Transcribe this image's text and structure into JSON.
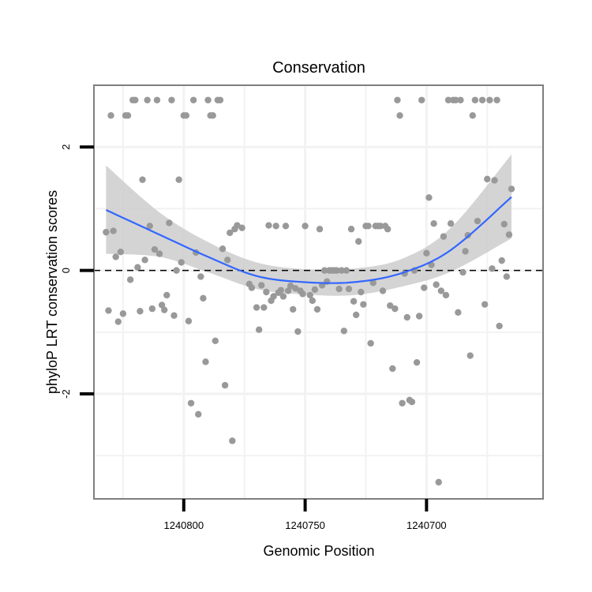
{
  "chart_data": {
    "type": "scatter",
    "title": "Conservation",
    "xlabel": "Genomic Position",
    "ylabel": "phyloP LRT conservation scores",
    "x_reversed": true,
    "xlim": [
      1240837,
      1240652
    ],
    "ylim": [
      -3.7,
      3.0
    ],
    "x_ticks": [
      1240800,
      1240750,
      1240700
    ],
    "x_tick_labels": [
      "1240800",
      "1240750",
      "1240700"
    ],
    "y_ticks": [
      -2,
      0,
      2
    ],
    "y_tick_labels": [
      "-2",
      "0",
      "2"
    ],
    "reference_line": {
      "y": 0,
      "style": "dashed"
    },
    "colors": {
      "points": "#999999",
      "smooth_line": "#3366ff",
      "confidence_band": "#cccccc",
      "panel_border": "#7f7f7f",
      "grid": "#f2f2f2"
    },
    "series": [
      {
        "name": "scores",
        "points": [
          [
            1240832,
            0.62
          ],
          [
            1240831,
            -0.65
          ],
          [
            1240830,
            2.51
          ],
          [
            1240829,
            0.64
          ],
          [
            1240828,
            0.22
          ],
          [
            1240827,
            -0.83
          ],
          [
            1240826,
            0.3
          ],
          [
            1240825,
            -0.7
          ],
          [
            1240824,
            2.51
          ],
          [
            1240823,
            2.51
          ],
          [
            1240822,
            -0.15
          ],
          [
            1240821,
            2.76
          ],
          [
            1240820,
            2.76
          ],
          [
            1240819,
            0.05
          ],
          [
            1240818,
            -0.66
          ],
          [
            1240817,
            1.47
          ],
          [
            1240816,
            0.17
          ],
          [
            1240815,
            2.76
          ],
          [
            1240814,
            0.72
          ],
          [
            1240813,
            -0.62
          ],
          [
            1240812,
            0.34
          ],
          [
            1240811,
            2.76
          ],
          [
            1240810,
            0.27
          ],
          [
            1240809,
            -0.56
          ],
          [
            1240808,
            -0.64
          ],
          [
            1240807,
            -0.4
          ],
          [
            1240806,
            0.77
          ],
          [
            1240805,
            2.76
          ],
          [
            1240804,
            -0.73
          ],
          [
            1240803,
            0
          ],
          [
            1240802,
            1.47
          ],
          [
            1240801,
            0.13
          ],
          [
            1240800,
            2.51
          ],
          [
            1240799,
            2.51
          ],
          [
            1240798,
            -0.82
          ],
          [
            1240797,
            -2.15
          ],
          [
            1240796,
            2.76
          ],
          [
            1240795,
            0.29
          ],
          [
            1240794,
            -2.33
          ],
          [
            1240793,
            -0.1
          ],
          [
            1240792,
            -0.45
          ],
          [
            1240791,
            -1.48
          ],
          [
            1240790,
            2.76
          ],
          [
            1240789,
            2.51
          ],
          [
            1240788,
            2.51
          ],
          [
            1240787,
            -1.14
          ],
          [
            1240786,
            2.76
          ],
          [
            1240785,
            2.76
          ],
          [
            1240784,
            0.35
          ],
          [
            1240783,
            -1.86
          ],
          [
            1240782,
            0.17
          ],
          [
            1240781,
            0.61
          ],
          [
            1240780,
            -2.76
          ],
          [
            1240779,
            0.67
          ],
          [
            1240778,
            0.73
          ],
          [
            1240776,
            0.69
          ],
          [
            1240773,
            -0.22
          ],
          [
            1240772,
            -0.28
          ],
          [
            1240770,
            -0.6
          ],
          [
            1240769,
            -0.96
          ],
          [
            1240768,
            -0.24
          ],
          [
            1240767,
            -0.6
          ],
          [
            1240766,
            -0.35
          ],
          [
            1240765,
            0.73
          ],
          [
            1240764,
            -0.49
          ],
          [
            1240763,
            -0.42
          ],
          [
            1240762,
            0.72
          ],
          [
            1240761,
            -0.36
          ],
          [
            1240760,
            -0.32
          ],
          [
            1240759,
            -0.42
          ],
          [
            1240758,
            0.72
          ],
          [
            1240757,
            -0.33
          ],
          [
            1240756,
            -0.25
          ],
          [
            1240755,
            -0.63
          ],
          [
            1240754,
            -0.29
          ],
          [
            1240753,
            -0.99
          ],
          [
            1240752,
            -0.33
          ],
          [
            1240751,
            -0.38
          ],
          [
            1240750,
            0.72
          ],
          [
            1240748,
            -0.4
          ],
          [
            1240747,
            -0.49
          ],
          [
            1240746,
            -0.31
          ],
          [
            1240745,
            -0.63
          ],
          [
            1240744,
            0.67
          ],
          [
            1240743,
            -0.24
          ],
          [
            1240742,
            0
          ],
          [
            1240741,
            -0.18
          ],
          [
            1240740,
            0
          ],
          [
            1240739,
            0
          ],
          [
            1240738,
            0
          ],
          [
            1240737,
            0
          ],
          [
            1240736,
            -0.3
          ],
          [
            1240735,
            0
          ],
          [
            1240734,
            -0.98
          ],
          [
            1240733,
            0
          ],
          [
            1240732,
            -0.3
          ],
          [
            1240731,
            0.67
          ],
          [
            1240730,
            -0.5
          ],
          [
            1240729,
            -0.72
          ],
          [
            1240728,
            0.47
          ],
          [
            1240727,
            -0.35
          ],
          [
            1240726,
            -0.55
          ],
          [
            1240725,
            0.72
          ],
          [
            1240724,
            0.72
          ],
          [
            1240723,
            -1.18
          ],
          [
            1240722,
            -0.2
          ],
          [
            1240721,
            0.72
          ],
          [
            1240720,
            0.72
          ],
          [
            1240719,
            0.72
          ],
          [
            1240718,
            -0.33
          ],
          [
            1240717,
            0.72
          ],
          [
            1240716,
            0.67
          ],
          [
            1240715,
            -0.57
          ],
          [
            1240714,
            -1.59
          ],
          [
            1240713,
            -0.62
          ],
          [
            1240712,
            2.76
          ],
          [
            1240711,
            2.51
          ],
          [
            1240710,
            -2.15
          ],
          [
            1240709,
            -0.05
          ],
          [
            1240708,
            -0.76
          ],
          [
            1240707,
            -2.1
          ],
          [
            1240706,
            -2.13
          ],
          [
            1240705,
            0
          ],
          [
            1240704,
            -1.49
          ],
          [
            1240703,
            -0.74
          ],
          [
            1240702,
            2.76
          ],
          [
            1240701,
            -0.28
          ],
          [
            1240700,
            0.28
          ],
          [
            1240699,
            1.18
          ],
          [
            1240698,
            0.09
          ],
          [
            1240697,
            0.76
          ],
          [
            1240696,
            -0.23
          ],
          [
            1240695,
            -3.43
          ],
          [
            1240694,
            -0.33
          ],
          [
            1240693,
            0.55
          ],
          [
            1240692,
            -0.4
          ],
          [
            1240691,
            2.76
          ],
          [
            1240690,
            0.76
          ],
          [
            1240689,
            2.76
          ],
          [
            1240688,
            2.76
          ],
          [
            1240687,
            -0.68
          ],
          [
            1240686,
            2.76
          ],
          [
            1240685,
            -0.03
          ],
          [
            1240684,
            0.31
          ],
          [
            1240683,
            0.57
          ],
          [
            1240682,
            -1.38
          ],
          [
            1240681,
            2.51
          ],
          [
            1240680,
            2.76
          ],
          [
            1240679,
            0.8
          ],
          [
            1240677,
            2.76
          ],
          [
            1240676,
            -0.55
          ],
          [
            1240675,
            1.48
          ],
          [
            1240674,
            2.76
          ],
          [
            1240673,
            0.03
          ],
          [
            1240672,
            1.46
          ],
          [
            1240671,
            2.76
          ],
          [
            1240670,
            -0.9
          ],
          [
            1240669,
            0.16
          ],
          [
            1240668,
            0.75
          ],
          [
            1240667,
            -0.1
          ],
          [
            1240666,
            0.58
          ],
          [
            1240665,
            1.32
          ]
        ]
      }
    ],
    "smooth": {
      "method": "loess",
      "x": [
        1240832,
        1240810,
        1240790,
        1240770,
        1240750,
        1240730,
        1240710,
        1240690,
        1240665
      ],
      "y": [
        0.98,
        0.58,
        0.22,
        -0.09,
        -0.19,
        -0.19,
        -0.04,
        0.33,
        1.19
      ],
      "lower": [
        0.27,
        0.22,
        -0.03,
        -0.3,
        -0.39,
        -0.4,
        -0.26,
        -0.02,
        0.52
      ],
      "upper": [
        1.7,
        0.94,
        0.46,
        0.13,
        0.02,
        0.03,
        0.19,
        0.69,
        1.88
      ]
    }
  }
}
